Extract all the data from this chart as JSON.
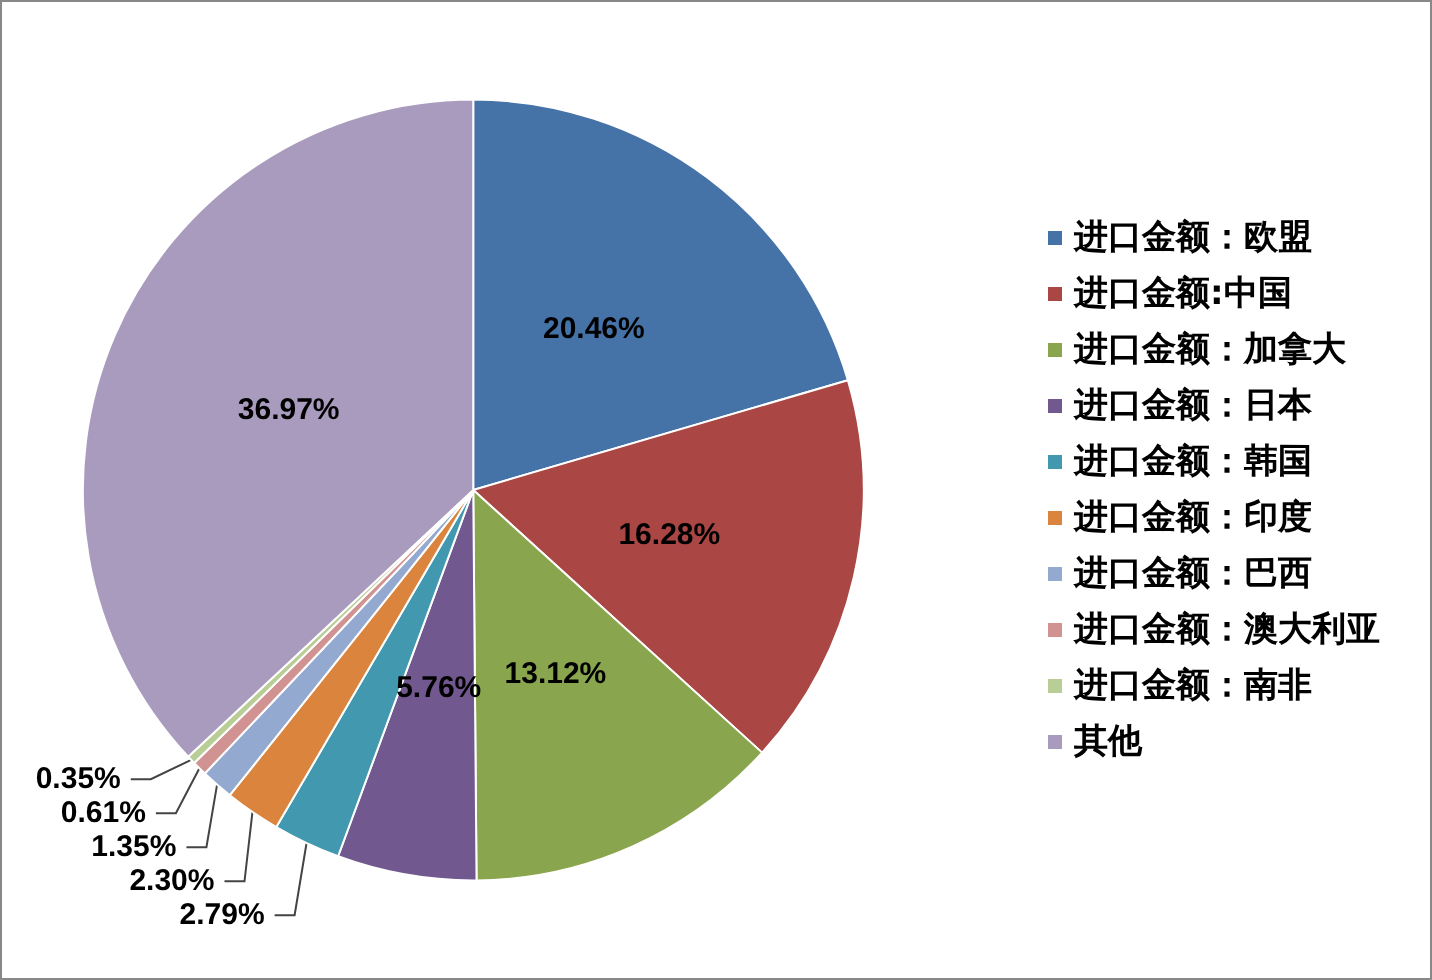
{
  "chart_data": {
    "type": "pie",
    "categories": [
      "进口金额：欧盟",
      "进口金额:中国",
      "进口金额：加拿大",
      "进口金额：日本",
      "进口金额：韩国",
      "进口金额：印度",
      "进口金额：巴西",
      "进口金额：澳大利亚",
      "进口金额：南非",
      "其他"
    ],
    "values": [
      20.46,
      16.28,
      13.12,
      5.76,
      2.79,
      2.3,
      1.35,
      0.61,
      0.35,
      36.97
    ],
    "value_labels": [
      "20.46%",
      "16.28%",
      "13.12%",
      "5.76%",
      "2.79%",
      "2.30%",
      "1.35%",
      "0.61%",
      "0.35%",
      "36.97%"
    ],
    "colors": [
      "#4572a7",
      "#aa4643",
      "#89a54e",
      "#71588f",
      "#4198af",
      "#db843d",
      "#93a9cf",
      "#d19392",
      "#b9cd96",
      "#a99bbd"
    ],
    "legend": "right"
  }
}
